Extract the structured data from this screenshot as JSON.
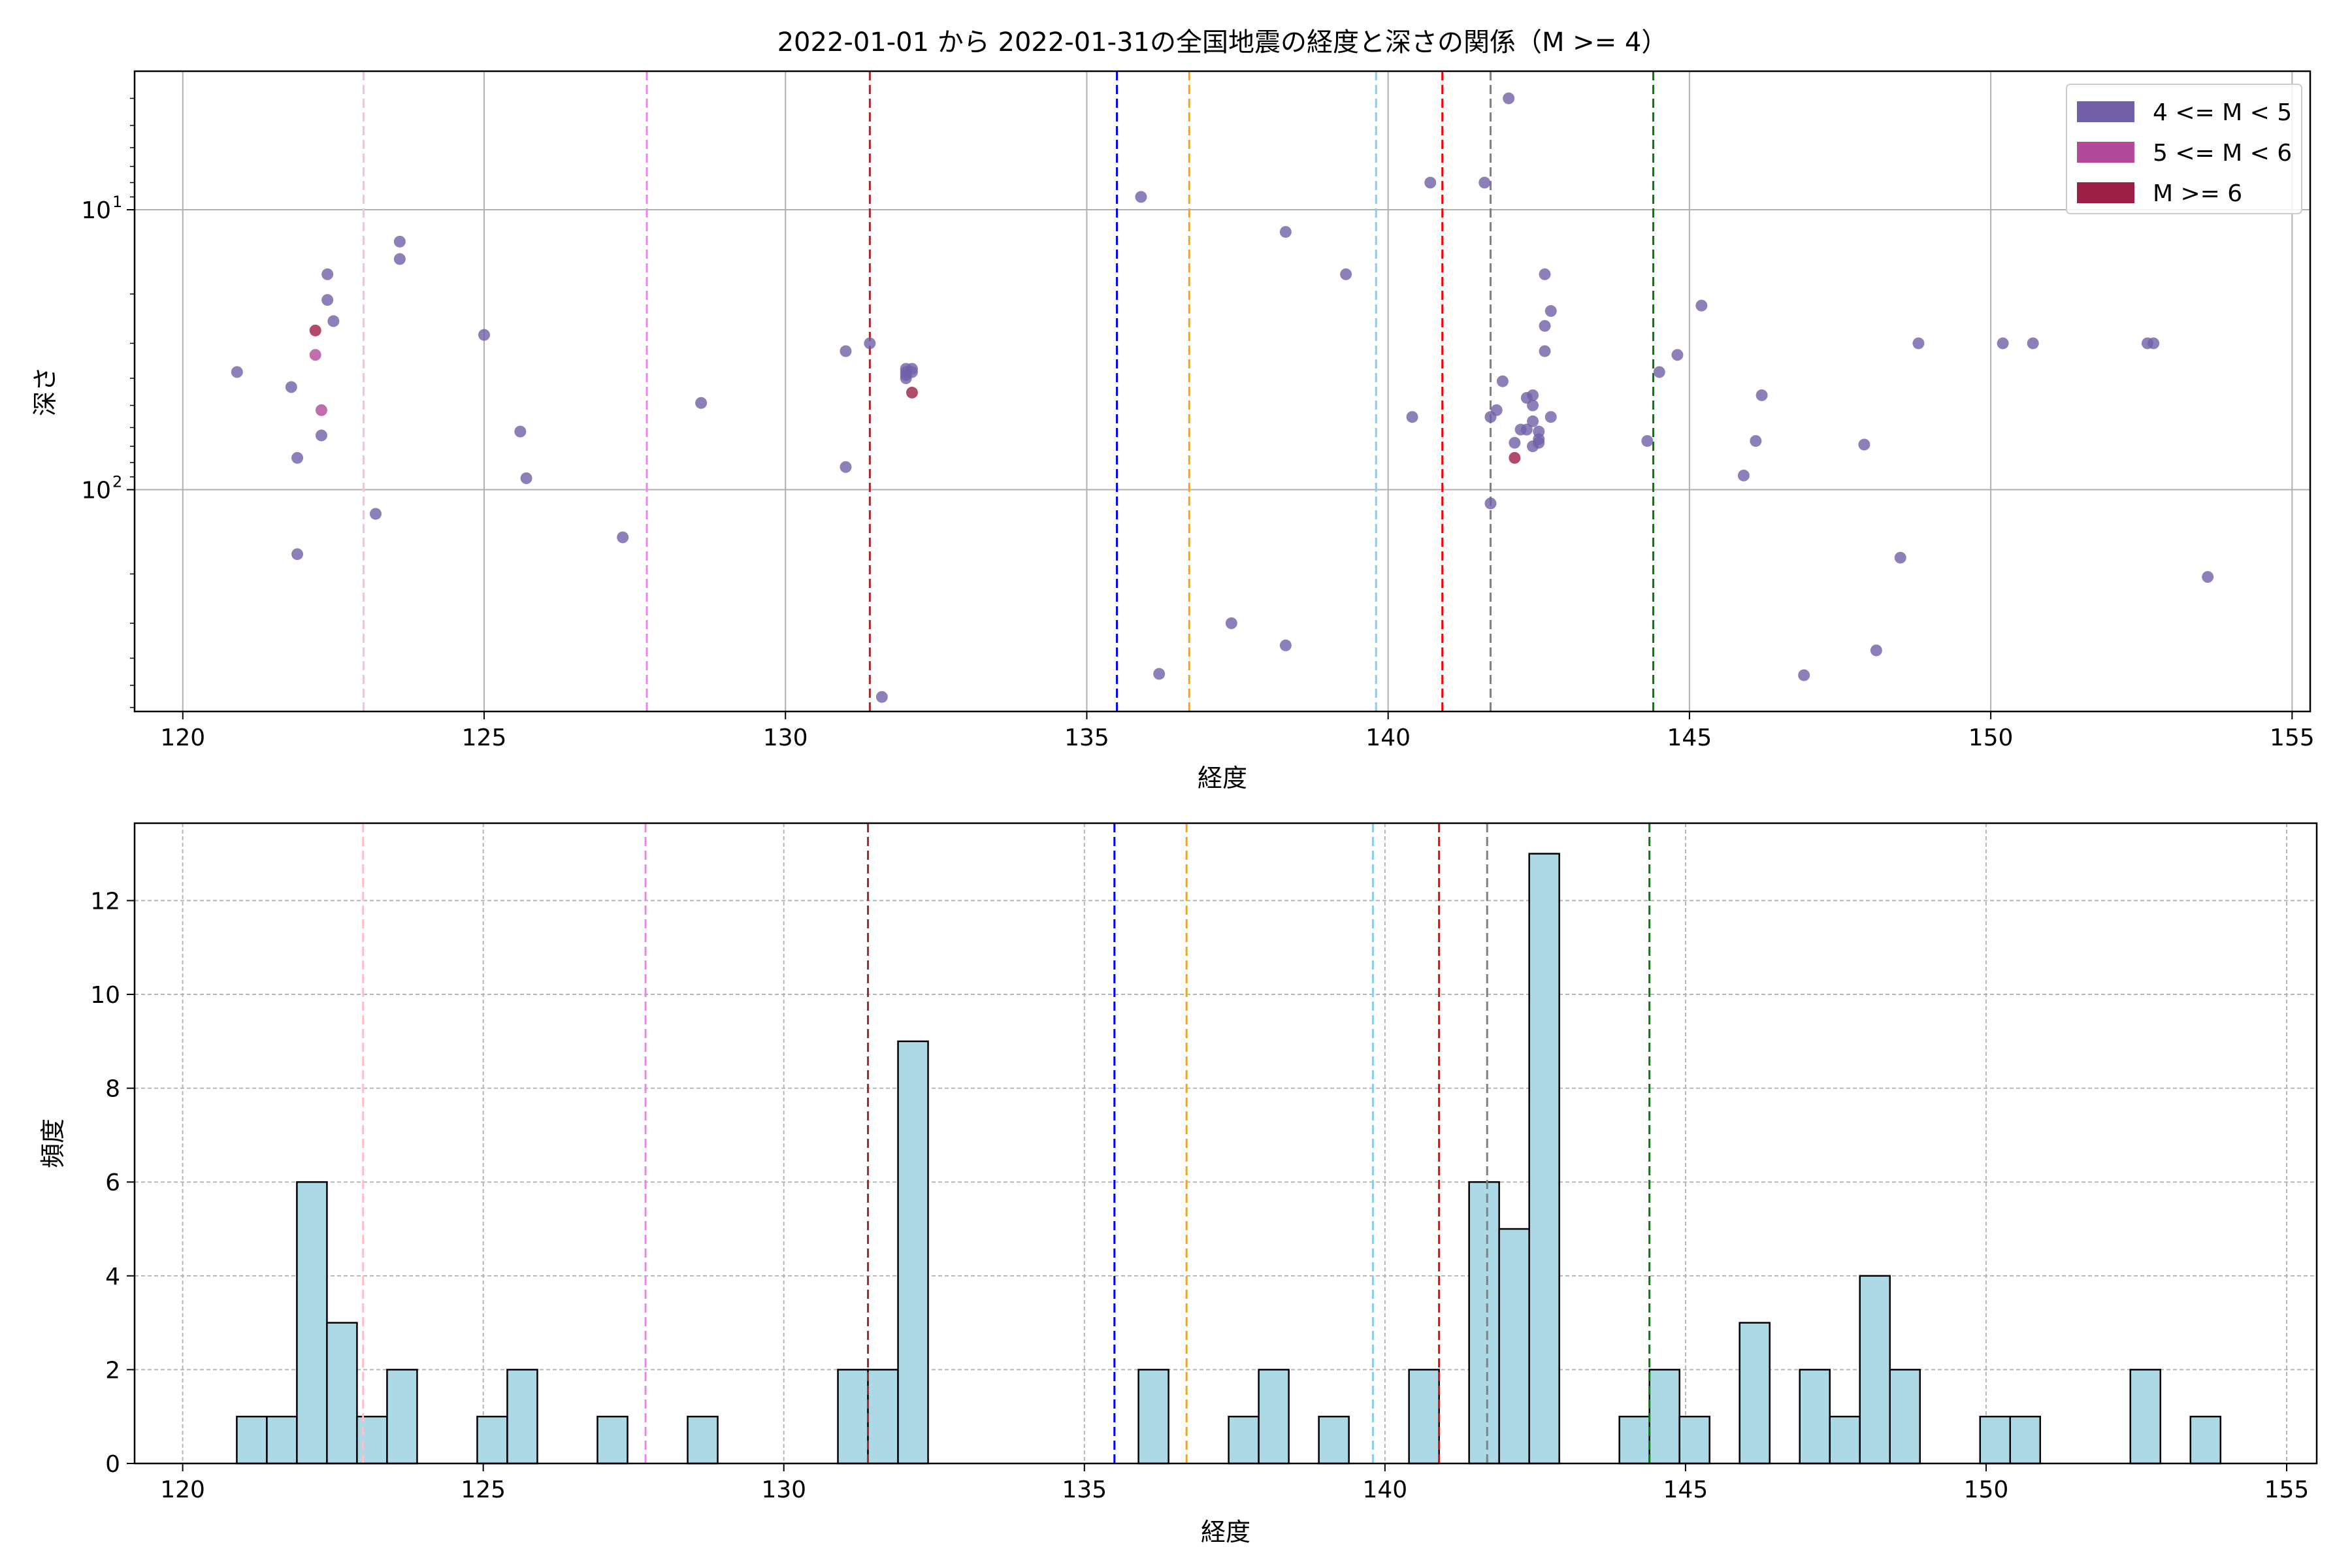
{
  "title": "2022-01-01 から 2022-01-31の全国地震の経度と深さの関係（M >= 4）",
  "colors": {
    "m4": "#7160a8",
    "m5": "#b24a9b",
    "m6": "#9c1f45",
    "hist_fill": "#add8e6",
    "grid": "#b0b0b0"
  },
  "chart_data": [
    {
      "type": "scatter",
      "title": "2022-01-01 から 2022-01-31の全国地震の経度と深さの関係（M >= 4）",
      "xlabel": "経度",
      "ylabel": "深さ",
      "xlim": [
        119.2,
        155.3
      ],
      "ylim": [
        620,
        3.2
      ],
      "yscale": "log",
      "yaxis_inverted": true,
      "grid": true,
      "x_ticks": [
        120,
        125,
        130,
        135,
        140,
        145,
        150,
        155
      ],
      "y_ticks": [
        {
          "value": 10,
          "label": "10",
          "exp": "1"
        },
        {
          "value": 100,
          "label": "10",
          "exp": "2"
        }
      ],
      "legend_position": "top-right",
      "legend": [
        {
          "label": "4 <= M < 5",
          "color": "#7160a8"
        },
        {
          "label": "5 <= M < 6",
          "color": "#b24a9b"
        },
        {
          "label": "M >= 6",
          "color": "#9c1f45"
        }
      ],
      "vlines": [
        {
          "x": 123.0,
          "color": "#ffc0cb"
        },
        {
          "x": 127.7,
          "color": "#ee82ee"
        },
        {
          "x": 131.4,
          "color": "#a52a2a"
        },
        {
          "x": 135.5,
          "color": "#0000ff"
        },
        {
          "x": 136.7,
          "color": "#ffa500"
        },
        {
          "x": 139.8,
          "color": "#87ceeb"
        },
        {
          "x": 140.9,
          "color": "#ff0000"
        },
        {
          "x": 141.7,
          "color": "#808080"
        },
        {
          "x": 144.4,
          "color": "#008000"
        }
      ],
      "series": [
        {
          "name": "4 <= M < 5",
          "color": "#7160a8",
          "points": [
            {
              "x": 120.9,
              "y": 38
            },
            {
              "x": 121.8,
              "y": 43
            },
            {
              "x": 121.9,
              "y": 77
            },
            {
              "x": 121.9,
              "y": 170
            },
            {
              "x": 122.3,
              "y": 64
            },
            {
              "x": 122.4,
              "y": 21
            },
            {
              "x": 122.4,
              "y": 17
            },
            {
              "x": 122.5,
              "y": 25
            },
            {
              "x": 123.2,
              "y": 122
            },
            {
              "x": 123.6,
              "y": 13
            },
            {
              "x": 123.6,
              "y": 15
            },
            {
              "x": 125.0,
              "y": 28
            },
            {
              "x": 125.6,
              "y": 62
            },
            {
              "x": 125.7,
              "y": 91
            },
            {
              "x": 127.3,
              "y": 148
            },
            {
              "x": 128.6,
              "y": 49
            },
            {
              "x": 131.0,
              "y": 32
            },
            {
              "x": 131.0,
              "y": 83
            },
            {
              "x": 131.4,
              "y": 30
            },
            {
              "x": 131.6,
              "y": 550
            },
            {
              "x": 132.0,
              "y": 37
            },
            {
              "x": 132.0,
              "y": 38
            },
            {
              "x": 132.0,
              "y": 39
            },
            {
              "x": 132.1,
              "y": 37
            },
            {
              "x": 132.0,
              "y": 40
            },
            {
              "x": 132.1,
              "y": 38
            },
            {
              "x": 135.9,
              "y": 9
            },
            {
              "x": 136.2,
              "y": 455
            },
            {
              "x": 137.4,
              "y": 300
            },
            {
              "x": 138.3,
              "y": 12
            },
            {
              "x": 138.3,
              "y": 360
            },
            {
              "x": 139.3,
              "y": 17
            },
            {
              "x": 140.4,
              "y": 55
            },
            {
              "x": 140.7,
              "y": 8
            },
            {
              "x": 141.6,
              "y": 8
            },
            {
              "x": 141.7,
              "y": 55
            },
            {
              "x": 141.7,
              "y": 112
            },
            {
              "x": 141.8,
              "y": 52
            },
            {
              "x": 141.9,
              "y": 41
            },
            {
              "x": 142.0,
              "y": 4
            },
            {
              "x": 142.1,
              "y": 68
            },
            {
              "x": 142.2,
              "y": 61
            },
            {
              "x": 142.3,
              "y": 47
            },
            {
              "x": 142.3,
              "y": 61
            },
            {
              "x": 142.4,
              "y": 46
            },
            {
              "x": 142.4,
              "y": 50
            },
            {
              "x": 142.4,
              "y": 57
            },
            {
              "x": 142.4,
              "y": 70
            },
            {
              "x": 142.5,
              "y": 62
            },
            {
              "x": 142.5,
              "y": 66
            },
            {
              "x": 142.5,
              "y": 68
            },
            {
              "x": 142.6,
              "y": 17
            },
            {
              "x": 142.6,
              "y": 32
            },
            {
              "x": 142.6,
              "y": 26
            },
            {
              "x": 142.7,
              "y": 23
            },
            {
              "x": 142.7,
              "y": 55
            },
            {
              "x": 144.3,
              "y": 67
            },
            {
              "x": 144.5,
              "y": 38
            },
            {
              "x": 144.8,
              "y": 33
            },
            {
              "x": 145.2,
              "y": 22
            },
            {
              "x": 145.9,
              "y": 89
            },
            {
              "x": 146.1,
              "y": 67
            },
            {
              "x": 146.2,
              "y": 46
            },
            {
              "x": 146.9,
              "y": 460
            },
            {
              "x": 147.9,
              "y": 69
            },
            {
              "x": 148.1,
              "y": 375
            },
            {
              "x": 148.5,
              "y": 175
            },
            {
              "x": 148.8,
              "y": 30
            },
            {
              "x": 150.2,
              "y": 30
            },
            {
              "x": 150.7,
              "y": 30
            },
            {
              "x": 152.6,
              "y": 30
            },
            {
              "x": 152.7,
              "y": 30
            },
            {
              "x": 153.6,
              "y": 205
            }
          ]
        },
        {
          "name": "5 <= M < 6",
          "color": "#b24a9b",
          "points": [
            {
              "x": 122.2,
              "y": 33
            },
            {
              "x": 122.3,
              "y": 52
            }
          ]
        },
        {
          "name": "M >= 6",
          "color": "#9c1f45",
          "points": [
            {
              "x": 122.2,
              "y": 27
            },
            {
              "x": 132.1,
              "y": 45
            },
            {
              "x": 142.1,
              "y": 77
            }
          ]
        }
      ]
    },
    {
      "type": "bar",
      "xlabel": "経度",
      "ylabel": "頻度",
      "xlim": [
        119.2,
        155.5
      ],
      "ylim": [
        0,
        13.65
      ],
      "grid": true,
      "x_ticks": [
        120,
        125,
        130,
        135,
        140,
        145,
        150,
        155
      ],
      "y_ticks": [
        0,
        2,
        4,
        6,
        8,
        10,
        12
      ],
      "vlines": [
        {
          "x": 123.0,
          "color": "#ffc0cb"
        },
        {
          "x": 127.7,
          "color": "#ee82ee"
        },
        {
          "x": 131.4,
          "color": "#a52a2a"
        },
        {
          "x": 135.5,
          "color": "#0000ff"
        },
        {
          "x": 136.7,
          "color": "#ffa500"
        },
        {
          "x": 139.8,
          "color": "#87ceeb"
        },
        {
          "x": 140.9,
          "color": "#ff0000"
        },
        {
          "x": 141.7,
          "color": "#808080"
        },
        {
          "x": 144.4,
          "color": "#008000"
        }
      ],
      "bins": [
        {
          "x0": 120.9,
          "x1": 121.4,
          "count": 1
        },
        {
          "x0": 121.4,
          "x1": 121.9,
          "count": 1
        },
        {
          "x0": 121.9,
          "x1": 122.4,
          "count": 6
        },
        {
          "x0": 122.4,
          "x1": 122.9,
          "count": 3
        },
        {
          "x0": 122.9,
          "x1": 123.4,
          "count": 1
        },
        {
          "x0": 123.4,
          "x1": 123.9,
          "count": 2
        },
        {
          "x0": 124.9,
          "x1": 125.4,
          "count": 1
        },
        {
          "x0": 125.4,
          "x1": 125.9,
          "count": 2
        },
        {
          "x0": 126.9,
          "x1": 127.4,
          "count": 1
        },
        {
          "x0": 128.4,
          "x1": 128.9,
          "count": 1
        },
        {
          "x0": 130.9,
          "x1": 131.4,
          "count": 2
        },
        {
          "x0": 131.4,
          "x1": 131.9,
          "count": 2
        },
        {
          "x0": 131.9,
          "x1": 132.4,
          "count": 9
        },
        {
          "x0": 135.9,
          "x1": 136.4,
          "count": 2
        },
        {
          "x0": 137.4,
          "x1": 137.9,
          "count": 1
        },
        {
          "x0": 137.9,
          "x1": 138.4,
          "count": 2
        },
        {
          "x0": 138.9,
          "x1": 139.4,
          "count": 1
        },
        {
          "x0": 140.4,
          "x1": 140.9,
          "count": 2
        },
        {
          "x0": 141.4,
          "x1": 141.9,
          "count": 6
        },
        {
          "x0": 141.9,
          "x1": 142.4,
          "count": 5
        },
        {
          "x0": 142.4,
          "x1": 142.9,
          "count": 13
        },
        {
          "x0": 143.9,
          "x1": 144.4,
          "count": 1
        },
        {
          "x0": 144.4,
          "x1": 144.9,
          "count": 2
        },
        {
          "x0": 144.9,
          "x1": 145.4,
          "count": 1
        },
        {
          "x0": 145.9,
          "x1": 146.4,
          "count": 3
        },
        {
          "x0": 146.9,
          "x1": 147.4,
          "count": 2
        },
        {
          "x0": 147.4,
          "x1": 147.9,
          "count": 1
        },
        {
          "x0": 147.9,
          "x1": 148.4,
          "count": 4
        },
        {
          "x0": 148.4,
          "x1": 148.9,
          "count": 2
        },
        {
          "x0": 149.9,
          "x1": 150.4,
          "count": 1
        },
        {
          "x0": 150.4,
          "x1": 150.9,
          "count": 1
        },
        {
          "x0": 152.4,
          "x1": 152.9,
          "count": 2
        },
        {
          "x0": 153.4,
          "x1": 153.9,
          "count": 1
        }
      ]
    }
  ]
}
